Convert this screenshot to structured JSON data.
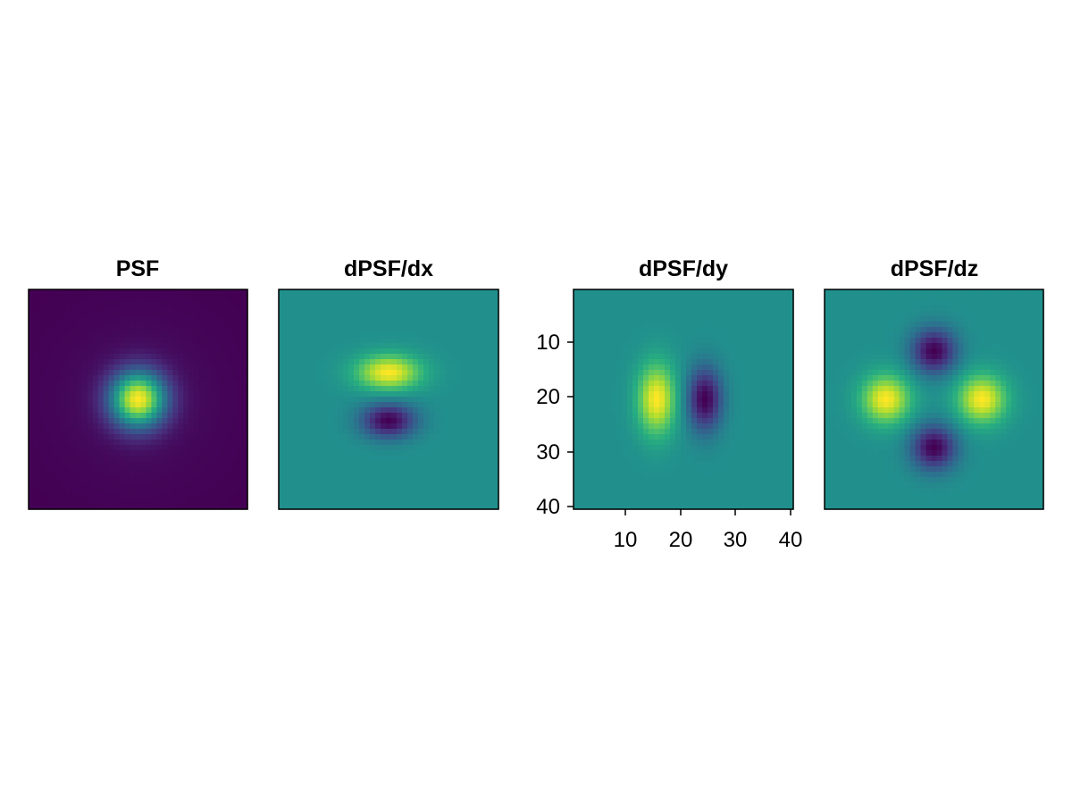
{
  "chart_data": [
    {
      "type": "heatmap",
      "title": "PSF",
      "grid_size": [
        41,
        41
      ],
      "colormap": "viridis",
      "pattern": "gaussian peak centered near (21, 21)",
      "peak": {
        "x": 21,
        "y": 21
      },
      "xticks_visible": false,
      "yticks_visible": false
    },
    {
      "type": "heatmap",
      "title": "dPSF/dx",
      "grid_size": [
        41,
        41
      ],
      "colormap": "viridis",
      "pattern": "positive lobe above center (y≈16), negative lobe below center (y≈25)",
      "positive_lobe": {
        "x": 21,
        "y": 16
      },
      "negative_lobe": {
        "x": 21,
        "y": 25
      },
      "xticks_visible": false,
      "yticks_visible": false
    },
    {
      "type": "heatmap",
      "title": "dPSF/dy",
      "grid_size": [
        41,
        41
      ],
      "colormap": "viridis",
      "pattern": "positive lobe left of center (x≈16), negative lobe right of center (x≈25)",
      "positive_lobe": {
        "x": 16,
        "y": 21
      },
      "negative_lobe": {
        "x": 25,
        "y": 21
      },
      "xticks": [
        "10",
        "20",
        "30",
        "40"
      ],
      "yticks": [
        "10",
        "20",
        "30",
        "40"
      ],
      "xticks_visible": true,
      "yticks_visible": true
    },
    {
      "type": "heatmap",
      "title": "dPSF/dz",
      "grid_size": [
        41,
        41
      ],
      "colormap": "viridis",
      "pattern": "positive lobes left/right (x≈12, x≈30), negative lobes top/bottom (y≈12, y≈30)",
      "positive_lobes": [
        {
          "x": 12,
          "y": 21
        },
        {
          "x": 30,
          "y": 21
        }
      ],
      "negative_lobes": [
        {
          "x": 21,
          "y": 12
        },
        {
          "x": 21,
          "y": 30
        }
      ],
      "xticks_visible": false,
      "yticks_visible": false
    }
  ]
}
